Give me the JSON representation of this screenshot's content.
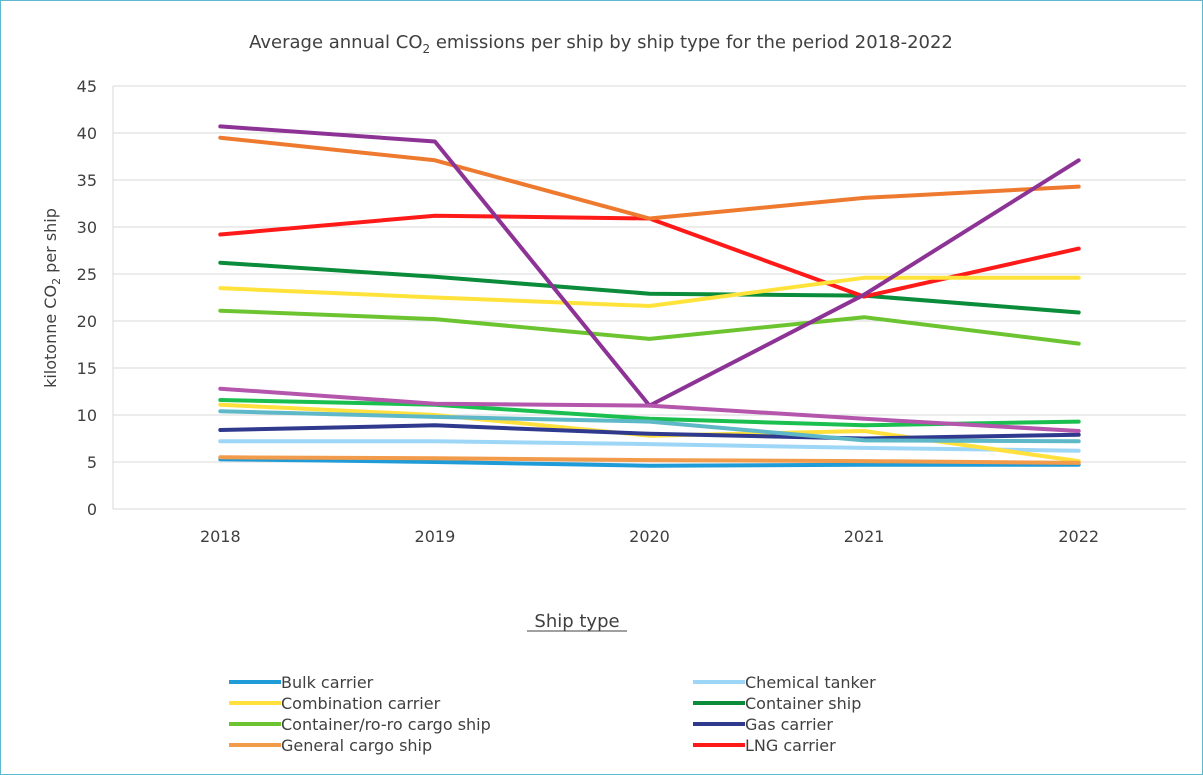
{
  "chart_data": {
    "type": "line",
    "title_prefix": "Average annual CO",
    "title_sub": "2",
    "title_suffix": " emissions per ship by ship type for the period 2018-2022",
    "ylabel_prefix": "kilotonne CO",
    "ylabel_sub": "2",
    "ylabel_suffix": " per ship",
    "xlabel": "Ship type",
    "x": [
      "2018",
      "2019",
      "2020",
      "2021",
      "2022"
    ],
    "ylim": [
      0,
      45
    ],
    "yticks": [
      0,
      5,
      10,
      15,
      20,
      25,
      30,
      35,
      40,
      45
    ],
    "grid": true,
    "legend_position": "bottom",
    "series": [
      {
        "name": "Bulk carrier",
        "color": "#1f9bd7",
        "legend": true,
        "values": [
          5.3,
          5.0,
          4.6,
          4.7,
          4.7
        ]
      },
      {
        "name": "Chemical tanker",
        "color": "#9dd6f7",
        "legend": true,
        "values": [
          7.2,
          7.2,
          6.9,
          6.5,
          6.2
        ]
      },
      {
        "name": "Combination carrier",
        "color": "#ffe03d",
        "legend": true,
        "values": [
          11.1,
          10.0,
          7.8,
          8.3,
          5.1
        ]
      },
      {
        "name": "Container ship",
        "color": "#0a8c3a",
        "legend": true,
        "values": [
          26.2,
          24.7,
          22.9,
          22.7,
          20.9
        ]
      },
      {
        "name": "Container/ro-ro cargo ship",
        "color": "#6cc530",
        "legend": true,
        "values": [
          21.1,
          20.2,
          18.1,
          20.4,
          17.6
        ]
      },
      {
        "name": "Gas carrier",
        "color": "#2f3a8f",
        "legend": true,
        "values": [
          8.4,
          8.9,
          8.0,
          7.5,
          7.9
        ]
      },
      {
        "name": "General cargo ship",
        "color": "#f29b4b",
        "legend": true,
        "values": [
          5.5,
          5.4,
          5.2,
          5.1,
          4.9
        ]
      },
      {
        "name": "LNG carrier",
        "color": "#ff1a1a",
        "legend": true,
        "values": [
          29.2,
          31.2,
          30.9,
          22.6,
          27.7
        ]
      },
      {
        "color": "#ffe33b",
        "legend": false,
        "values": [
          23.5,
          22.5,
          21.6,
          24.6,
          24.6
        ]
      },
      {
        "color": "#ee7a2f",
        "legend": false,
        "values": [
          39.5,
          37.1,
          30.9,
          33.1,
          34.3
        ]
      },
      {
        "color": "#8e3396",
        "legend": false,
        "values": [
          40.7,
          39.1,
          11.0,
          22.8,
          37.1
        ]
      },
      {
        "color": "#1bbf4f",
        "legend": false,
        "values": [
          11.6,
          11.1,
          9.6,
          8.9,
          9.3
        ]
      },
      {
        "color": "#5fb8c8",
        "legend": false,
        "values": [
          10.4,
          9.8,
          9.3,
          7.3,
          7.2
        ]
      },
      {
        "color": "#b556ad",
        "legend": false,
        "values": [
          12.8,
          11.2,
          11.0,
          9.6,
          8.3
        ]
      }
    ]
  }
}
